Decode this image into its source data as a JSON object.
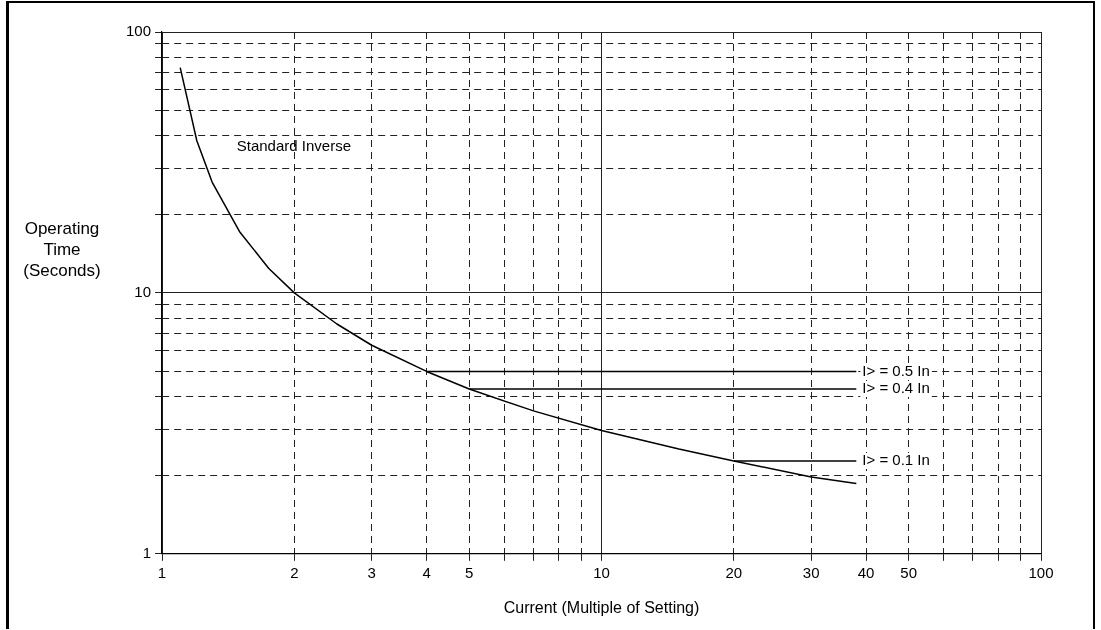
{
  "chart_data": {
    "type": "line",
    "xlabel": "Current (Multiple of Setting)",
    "ylabel": "Operating Time (Seconds)",
    "log": "xy",
    "grid": true,
    "legend": false,
    "marker": "none",
    "line_style": "solid",
    "xlim": [
      1,
      100
    ],
    "ylim": [
      1,
      100
    ],
    "xticks": [
      1,
      2,
      3,
      4,
      5,
      {
        "value": 6,
        "label": null
      },
      {
        "value": 7,
        "label": null
      },
      {
        "value": 8,
        "label": null
      },
      {
        "value": 9,
        "label": null
      },
      10,
      20,
      30,
      40,
      50,
      {
        "value": 60,
        "label": null
      },
      {
        "value": 70,
        "label": null
      },
      {
        "value": 80,
        "label": null
      },
      {
        "value": 90,
        "label": null
      },
      100
    ],
    "yticks": [
      1,
      {
        "value": 2,
        "label": null
      },
      {
        "value": 3,
        "label": null
      },
      {
        "value": 4,
        "label": null
      },
      {
        "value": 5,
        "label": null
      },
      {
        "value": 6,
        "label": null
      },
      {
        "value": 7,
        "label": null
      },
      {
        "value": 8,
        "label": null
      },
      {
        "value": 9,
        "label": null
      },
      10,
      {
        "value": 20,
        "label": null
      },
      {
        "value": 30,
        "label": null
      },
      {
        "value": 40,
        "label": null
      },
      {
        "value": 50,
        "label": null
      },
      {
        "value": 60,
        "label": null
      },
      {
        "value": 70,
        "label": null
      },
      {
        "value": 80,
        "label": null
      },
      {
        "value": 90,
        "label": null
      },
      100
    ],
    "series": [
      {
        "color": "#000000",
        "x": [
          1.1,
          1.2,
          1.3,
          1.5,
          1.75,
          2,
          2.5,
          3,
          4,
          5,
          7,
          10,
          15,
          20,
          30,
          38
        ],
        "values": [
          73,
          38.3,
          26.6,
          17.2,
          12.4,
          10,
          7.6,
          6.3,
          5,
          4.28,
          3.53,
          2.97,
          2.52,
          2.27,
          1.97,
          1.86
        ]
      },
      {
        "name": "I> = 0.5 In",
        "color": "#000000",
        "x": [
          4,
          38
        ],
        "values": [
          5,
          5
        ]
      },
      {
        "name": "I> = 0.4 In",
        "color": "#000000",
        "x": [
          5,
          38
        ],
        "values": [
          4.28,
          4.28
        ]
      },
      {
        "name": "I> = 0.1 In",
        "color": "#000000",
        "x": [
          20,
          38
        ],
        "values": [
          2.27,
          2.27
        ]
      }
    ],
    "annotations": [
      "Standard Inverse"
    ]
  }
}
